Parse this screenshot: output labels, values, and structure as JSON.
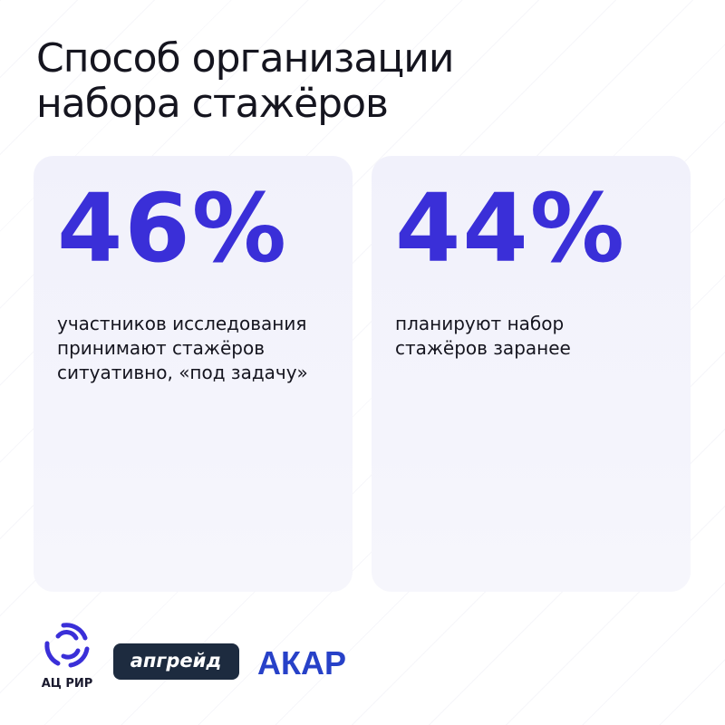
{
  "header": {
    "title_lines": [
      "Способ организации",
      "набора стажёров"
    ]
  },
  "cards": [
    {
      "value": "46%",
      "lines": [
        "участников исследования",
        "принимают стажёров",
        "ситуативно, «под задачу»"
      ]
    },
    {
      "value": "44%",
      "lines": [
        "планируют набор",
        "стажёров заранее"
      ]
    }
  ],
  "logos": {
    "acrir": "АЦ РИР",
    "upgrade": "апгрейд",
    "akar": "АКАР"
  }
}
